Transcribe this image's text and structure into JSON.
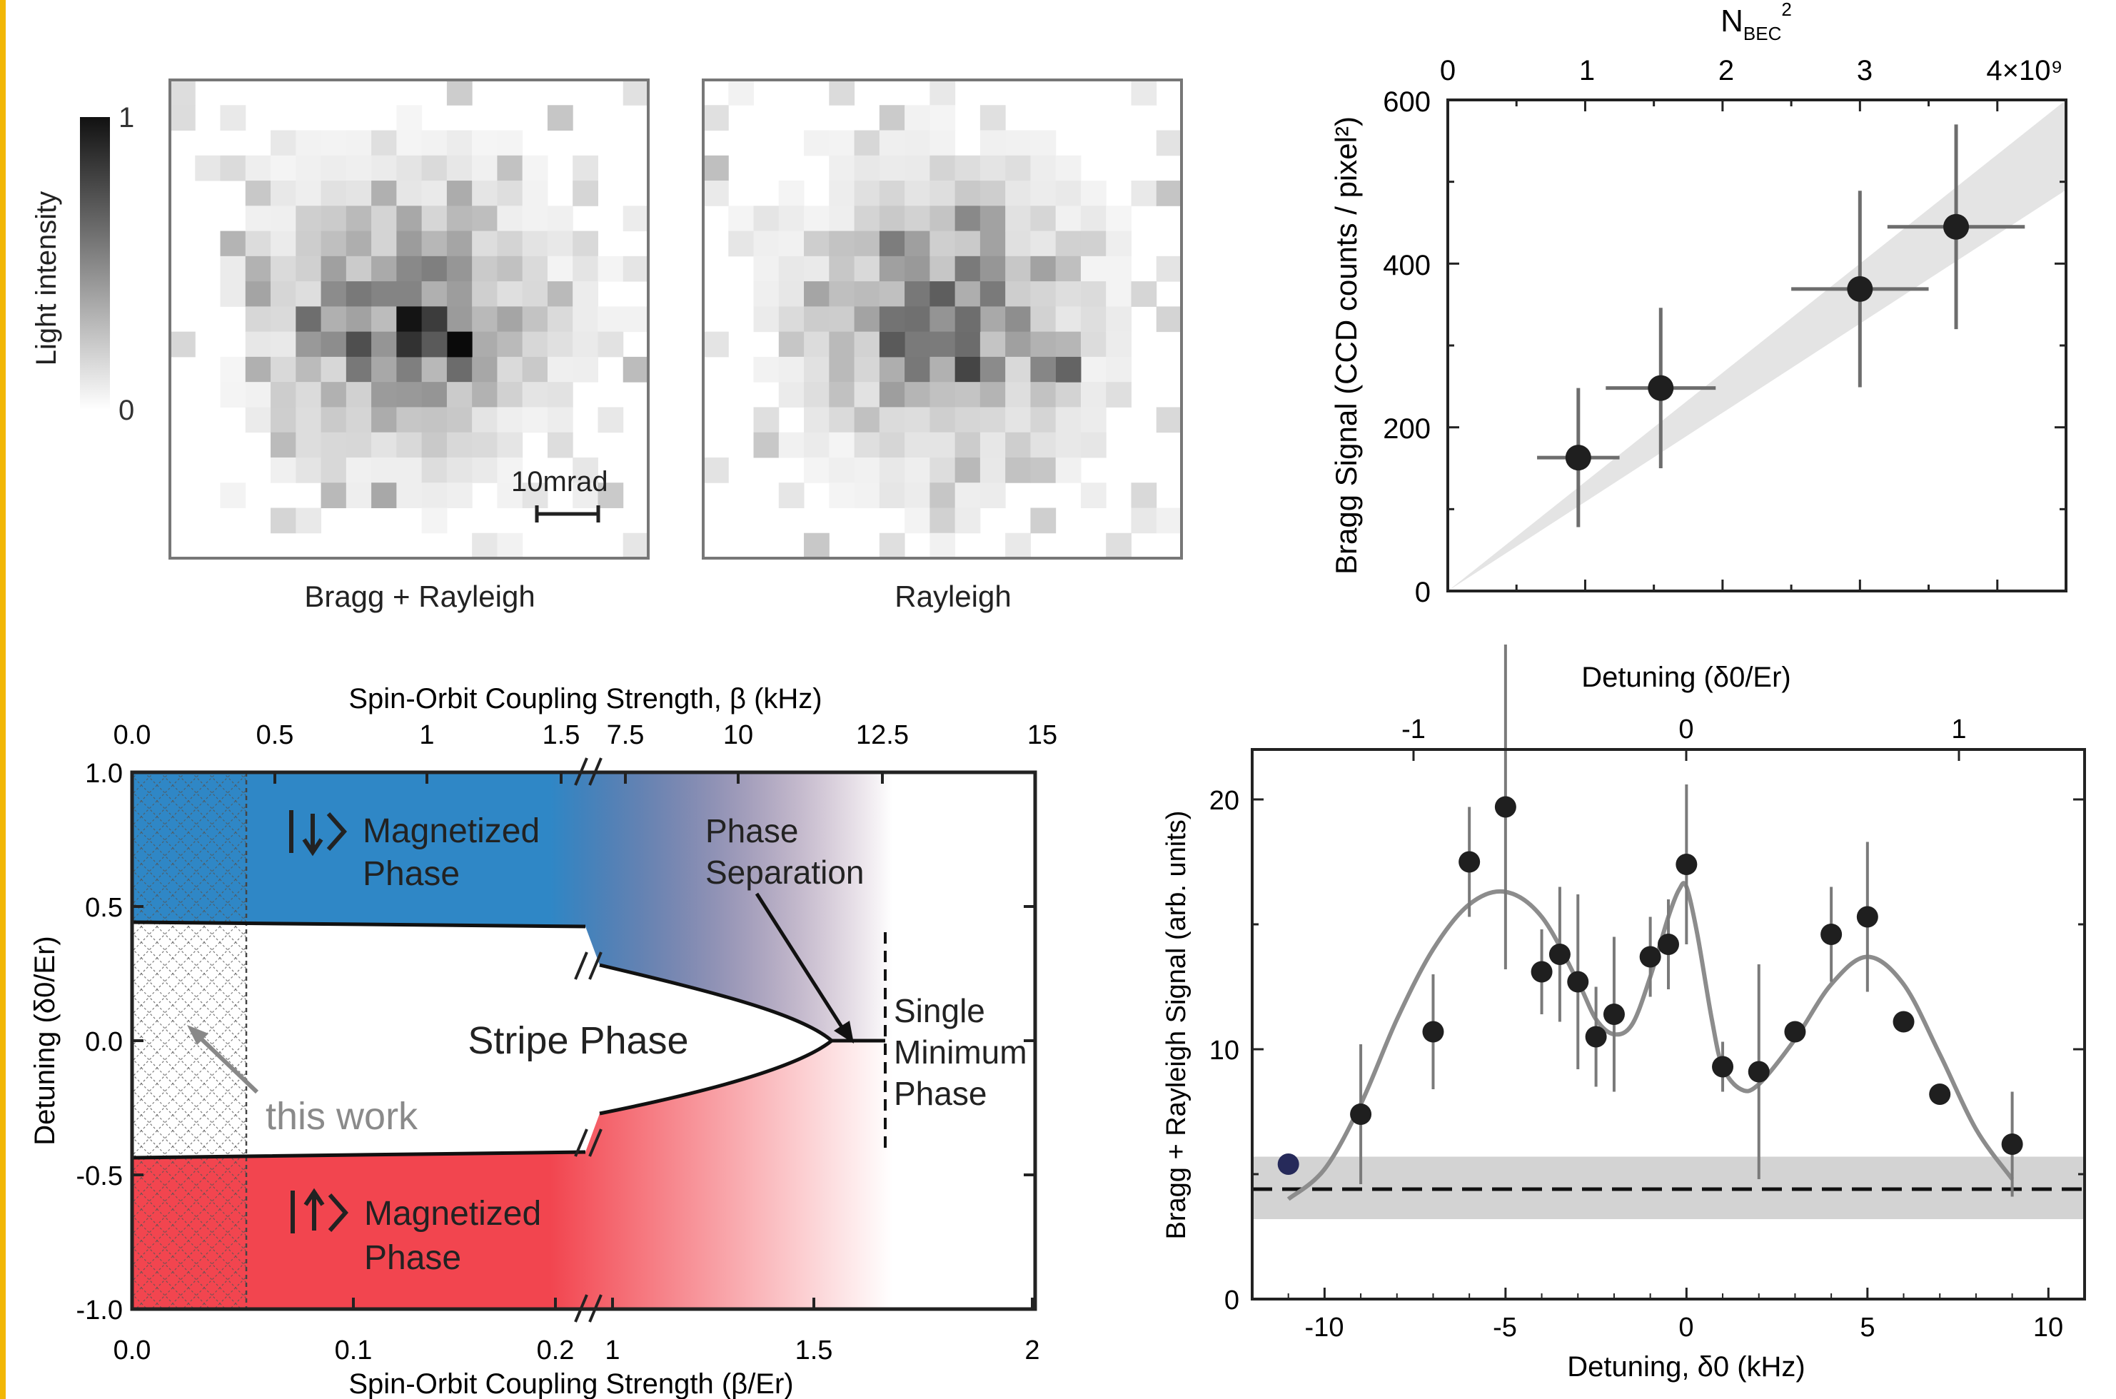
{
  "colors": {
    "accent_border": "#f2b705",
    "blue_phase": "#2f87c6",
    "red_phase": "#f2454f",
    "data_marker": "#1f1f1f",
    "fit_line": "#8c8c8c",
    "band": "#d3d3d3"
  },
  "panel_images": {
    "colorbar_label": "Light intensity",
    "colorbar_max": "1",
    "colorbar_min": "0",
    "left_caption": "Bragg + Rayleigh",
    "right_caption": "Rayleigh",
    "scale_bar_label": "10mrad"
  },
  "chart_data": [
    {
      "type": "scatter",
      "panel": "top-right",
      "ylabel": "Bragg Signal (CCD counts / pixel²)",
      "xlabel_top_main": "N",
      "xlabel_top_sub": "BEC",
      "xlabel_top_sup": "2",
      "top_ticks": [
        "0",
        "1",
        "2",
        "3",
        "4×10⁹"
      ],
      "y_ticks": [
        "0",
        "200",
        "400",
        "600"
      ],
      "xlim": [
        0,
        4.5
      ],
      "ylim": [
        0,
        600
      ],
      "band_upper": [
        [
          0,
          0
        ],
        [
          4.5,
          600
        ]
      ],
      "band_lower": [
        [
          0,
          0
        ],
        [
          4.5,
          490
        ]
      ],
      "series": [
        {
          "x": [
            0.95,
            1.55,
            3.0,
            3.7
          ],
          "y": [
            163,
            248,
            369,
            445
          ],
          "xerr": [
            0.3,
            0.4,
            0.5,
            0.5
          ],
          "yerr": [
            85,
            98,
            120,
            125
          ]
        }
      ]
    },
    {
      "type": "area",
      "panel": "bottom-left",
      "xlabel": "Spin-Orbit Coupling Strength (β/Er)",
      "xlabel_top": "Spin-Orbit Coupling Strength, β (kHz)",
      "ylabel": "Detuning (δ0/Er)",
      "x_ticks_bottom": [
        "0.0",
        "0.1",
        "0.2",
        "1",
        "1.5",
        "2"
      ],
      "x_ticks_top": [
        "0.0",
        "0.5",
        "1",
        "1.5",
        "7.5",
        "10",
        "12.5",
        "15"
      ],
      "y_ticks": [
        "1.0",
        "0.5",
        "0.0",
        "-0.5",
        "-1.0"
      ],
      "ylim": [
        -1.0,
        1.0
      ],
      "labels": {
        "magnetized_up": "Magnetized",
        "magnetized_up_2": "Phase",
        "magnetized_down": "Magnetized",
        "magnetized_down_2": "Phase",
        "stripe": "Stripe Phase",
        "phase_sep_1": "Phase",
        "phase_sep_2": "Separation",
        "single_1": "Single",
        "single_2": "Minimum",
        "single_3": "Phase",
        "this_work": "this work"
      }
    },
    {
      "type": "scatter",
      "panel": "bottom-right",
      "xlabel": "Detuning, δ0 (kHz)",
      "xlabel_top": "Detuning (δ0/Er)",
      "ylabel": "Bragg + Rayleigh Signal (arb. units)",
      "x_ticks": [
        "-10",
        "-5",
        "0",
        "5",
        "10"
      ],
      "top_ticks": [
        "-1",
        "0",
        "1"
      ],
      "y_ticks": [
        "0",
        "10",
        "20"
      ],
      "xlim": [
        -12,
        11
      ],
      "ylim": [
        0,
        22
      ],
      "baseline": 4.4,
      "band": [
        3.2,
        5.7
      ],
      "series": [
        {
          "name": "data",
          "x": [
            -11,
            -9,
            -7,
            -6,
            -5,
            -4,
            -3.5,
            -3,
            -2.5,
            -2,
            -1,
            -0.5,
            0,
            1,
            2,
            3,
            4,
            5,
            6,
            7,
            9
          ],
          "y": [
            5.4,
            7.4,
            10.7,
            17.5,
            19.7,
            13.1,
            13.8,
            12.7,
            10.5,
            11.4,
            13.7,
            14.2,
            17.4,
            9.3,
            9.1,
            10.7,
            14.6,
            15.3,
            11.1,
            8.2,
            6.2
          ],
          "yerr": [
            0,
            2.8,
            2.3,
            2.2,
            6.5,
            1.7,
            2.7,
            3.5,
            2.0,
            3.1,
            1.6,
            1.8,
            3.2,
            1.0,
            4.3,
            0,
            1.9,
            3.0,
            0,
            0,
            2.1
          ]
        },
        {
          "name": "fit",
          "x": [
            -11,
            -10,
            -9,
            -8,
            -7,
            -6,
            -5,
            -4,
            -3,
            -2.5,
            -2,
            -1.5,
            -1,
            -0.5,
            -0.2,
            0,
            0.3,
            0.7,
            1,
            1.5,
            2,
            3,
            4,
            5,
            6,
            7,
            8,
            9
          ],
          "y": [
            4.0,
            5.2,
            7.8,
            11.2,
            14.0,
            15.8,
            16.3,
            15.3,
            12.7,
            11.2,
            10.6,
            11.0,
            12.9,
            15.3,
            16.4,
            16.5,
            14.6,
            11.2,
            9.3,
            8.4,
            8.6,
            10.4,
            12.6,
            13.7,
            12.6,
            9.8,
            6.8,
            4.8
          ]
        }
      ]
    }
  ]
}
